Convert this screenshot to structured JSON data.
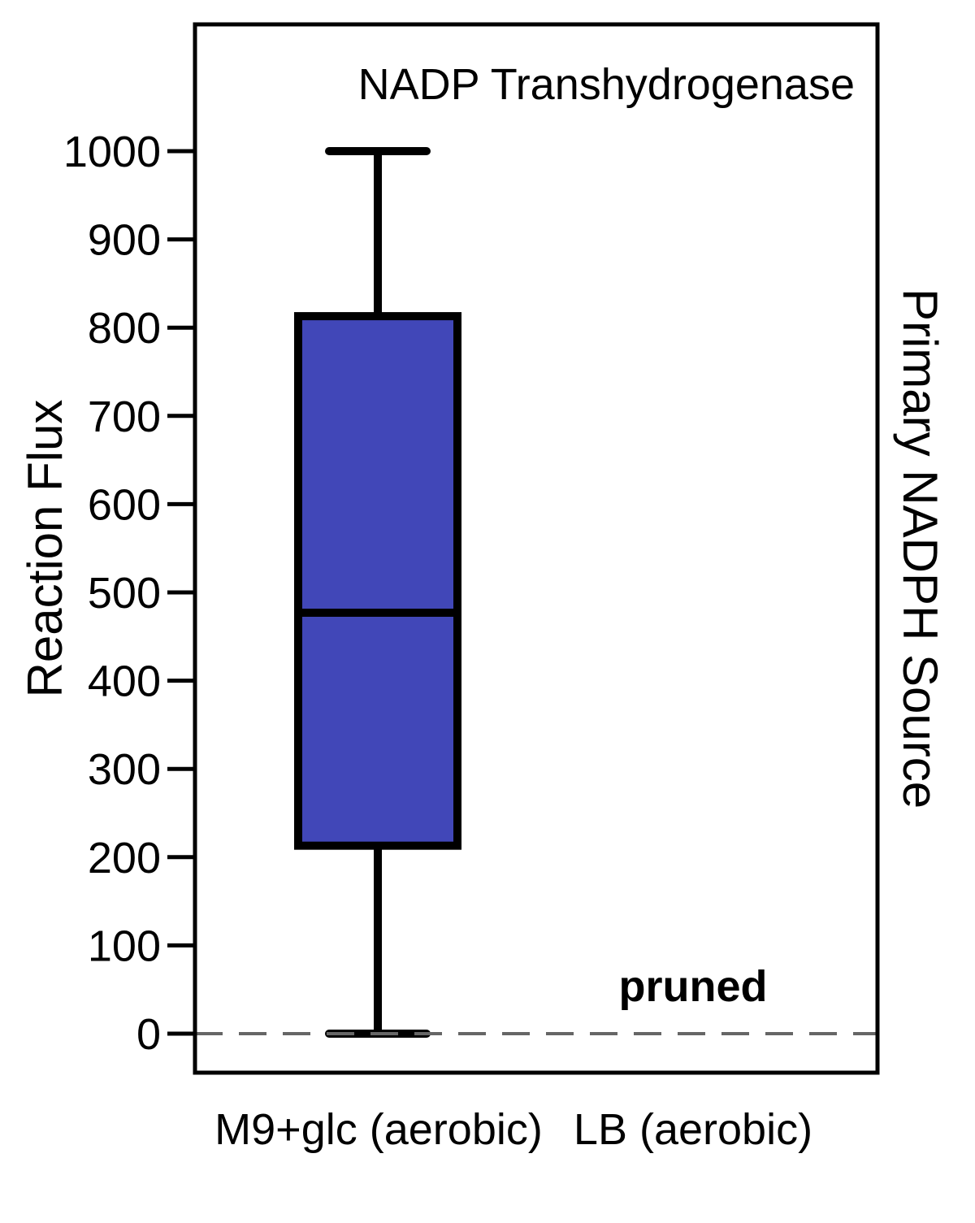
{
  "chart_data": {
    "type": "box",
    "title": "NADP Transhydrogenase",
    "ylabel": "Reaction Flux",
    "side_label": "Primary NADPH Source",
    "annotation": "pruned",
    "categories": [
      "M9+glc (aerobic)",
      "LB (aerobic)"
    ],
    "ylim": [
      -45,
      1140
    ],
    "yticks": [
      0,
      100,
      200,
      300,
      400,
      500,
      600,
      700,
      800,
      900,
      1000
    ],
    "reference_line": {
      "y": 0,
      "style": "dashed",
      "color": "#666666"
    },
    "boxes": [
      {
        "category": "M9+glc (aerobic)",
        "whisker_low": 0,
        "q1": 213,
        "median": 477,
        "q3": 813,
        "whisker_high": 1000,
        "color": "#4147b8"
      },
      {
        "category": "LB (aerobic)",
        "pruned": true
      }
    ],
    "grid": false,
    "legend": "none"
  }
}
